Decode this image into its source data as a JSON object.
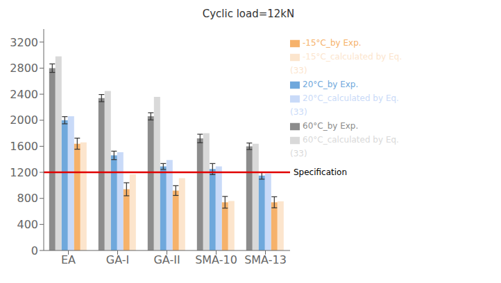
{
  "chart_data": {
    "type": "bar",
    "title": "Cyclic load=12kN",
    "categories": [
      "EA",
      "GA-I",
      "GA-II",
      "SMA-10",
      "SMA-13"
    ],
    "series": [
      {
        "name": "60°C_by Exp.",
        "color": "#8c8c8c",
        "values": [
          2800,
          2340,
          2060,
          1720,
          1600
        ],
        "errors": [
          65,
          55,
          55,
          65,
          50
        ]
      },
      {
        "name": "60°C_calculated by Eq. (33)",
        "color": "#d9d9d9",
        "values": [
          2980,
          2450,
          2360,
          1800,
          1640
        ]
      },
      {
        "name": "20°C_by Exp.",
        "color": "#6fa8dc",
        "values": [
          2000,
          1460,
          1290,
          1250,
          1150
        ],
        "errors": [
          55,
          65,
          45,
          85,
          55
        ]
      },
      {
        "name": "20°C_calculated by Eq. (33)",
        "color": "#c9daf8",
        "values": [
          2060,
          1510,
          1390,
          1290,
          1180
        ]
      },
      {
        "name": "-15°C_by Exp.",
        "color": "#f6b26b",
        "values": [
          1640,
          940,
          920,
          740,
          740
        ],
        "errors": [
          85,
          100,
          75,
          90,
          85
        ]
      },
      {
        "name": "-15°C_calculated by Eq. (33)",
        "color": "#fce5cd",
        "values": [
          1660,
          1170,
          1110,
          760,
          755
        ]
      }
    ],
    "ylim": [
      0,
      3400
    ],
    "yticks": [
      0,
      400,
      800,
      1200,
      1600,
      2000,
      2400,
      2800,
      3200
    ],
    "grid": false,
    "legend": "right",
    "annotations": [
      {
        "text": "Specification",
        "y": 1200,
        "color": "#e00000"
      }
    ]
  }
}
